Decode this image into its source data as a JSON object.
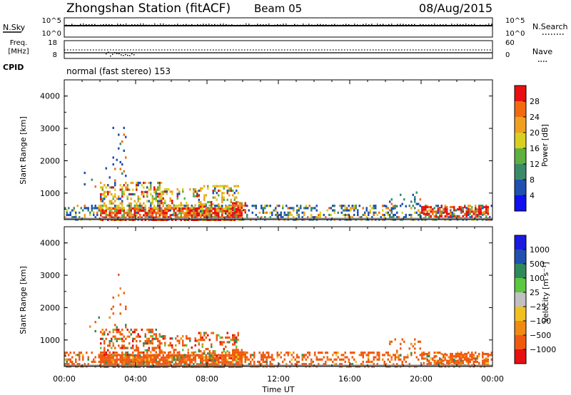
{
  "header": {
    "station": "Zhongshan Station (fitACF)",
    "beam": "Beam 05",
    "date": "08/Aug/2015"
  },
  "noise_panel": {
    "left_label": "N.Sky",
    "right_label": "N.Search",
    "left_ticks": [
      "10^5",
      "10^0"
    ],
    "right_ticks": [
      "10^5",
      "10^0"
    ]
  },
  "freq_panel": {
    "left_label_line1": "Freq.",
    "left_label_line2": "[MHz]",
    "left_ticks": [
      "18",
      "8"
    ],
    "right_ticks": [
      "60",
      "0"
    ],
    "right_label": "Nave"
  },
  "cpid": {
    "label": "CPID",
    "value": "normal (fast stereo) 153"
  },
  "chart_data": [
    {
      "type": "heatmap",
      "name": "power",
      "ylabel": "Slant Range [km]",
      "xlabel": "",
      "ylim": [
        180,
        4500
      ],
      "y_ticks": [
        "4000",
        "3000",
        "2000",
        "1000"
      ],
      "x_tick_labels": [],
      "colorbar_label": "Power [dB]",
      "colorbar_ticks": [
        "28",
        "24",
        "20",
        "16",
        "12",
        "8",
        "4"
      ],
      "colorbar_colors": [
        "#e81010",
        "#f26a10",
        "#f0a020",
        "#d8d020",
        "#60b040",
        "#3a8a6a",
        "#2050b0",
        "#1010f0"
      ],
      "grid": false
    },
    {
      "type": "heatmap",
      "name": "velocity",
      "ylabel": "Slant Range [km]",
      "xlabel": "Time UT",
      "ylim": [
        180,
        4500
      ],
      "y_ticks": [
        "4000",
        "3000",
        "2000",
        "1000"
      ],
      "x_tick_labels": [
        "00:00",
        "04:00",
        "08:00",
        "12:00",
        "16:00",
        "20:00",
        "00:00"
      ],
      "colorbar_label": "Velocity [m s⁻¹]",
      "colorbar_ticks": [
        "1000",
        "500",
        "100",
        "25",
        "−25",
        "−100",
        "−500",
        "−1000"
      ],
      "colorbar_colors": [
        "#1a1ae0",
        "#2050b0",
        "#2e8a5a",
        "#5ac840",
        "#c0c0c0",
        "#f0c020",
        "#f08a10",
        "#f05a10",
        "#e81010"
      ],
      "grid": false
    }
  ],
  "colors": {
    "axis": "#000000",
    "ground_scatter": "#8a8a8a"
  }
}
